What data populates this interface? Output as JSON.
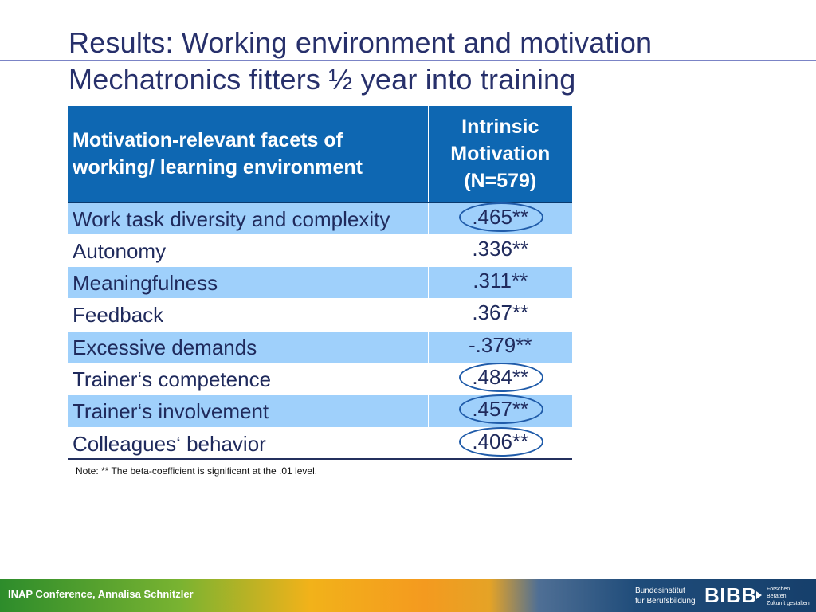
{
  "slide": {
    "title_line1": "Results: Working environment and motivation",
    "title_line2": "Mechatronics fitters ½ year into training"
  },
  "table": {
    "header_left_line1": "Motivation-relevant facets of",
    "header_left_line2": "working/ learning environment",
    "header_right_line1": "Intrinsic",
    "header_right_line2": "Motivation",
    "header_right_line3": "(N=579)",
    "rows": [
      {
        "label": "Work task diversity and complexity",
        "value": ".465**",
        "highlighted": true
      },
      {
        "label": "Autonomy",
        "value": ".336**",
        "highlighted": false
      },
      {
        "label": "Meaningfulness",
        "value": ".311**",
        "highlighted": false
      },
      {
        "label": "Feedback",
        "value": ".367**",
        "highlighted": false
      },
      {
        "label": "Excessive demands",
        "value": "-.379**",
        "highlighted": false
      },
      {
        "label": "Trainer‘s competence",
        "value": ".484**",
        "highlighted": true
      },
      {
        "label": "Trainer‘s involvement",
        "value": ".457**",
        "highlighted": true
      },
      {
        "label": "Colleagues‘ behavior",
        "value": ".406**",
        "highlighted": true
      }
    ]
  },
  "note": "Note: ** The beta-coefficient is significant at the .01 level.",
  "footer": {
    "conference": "INAP Conference, Annalisa Schnitzler",
    "institute_line1": "Bundesinstitut",
    "institute_line2": "für Berufsbildung",
    "logo_text": "BIBB",
    "slogan_line1": "Forschen",
    "slogan_line2": "Beraten",
    "slogan_line3": "Zukunft gestalten"
  },
  "colors": {
    "header_bg": "#0e67b2",
    "row_shade": "#9fd0fb",
    "highlight_ellipse": "#1f5ba9",
    "title_text": "#27306b"
  }
}
